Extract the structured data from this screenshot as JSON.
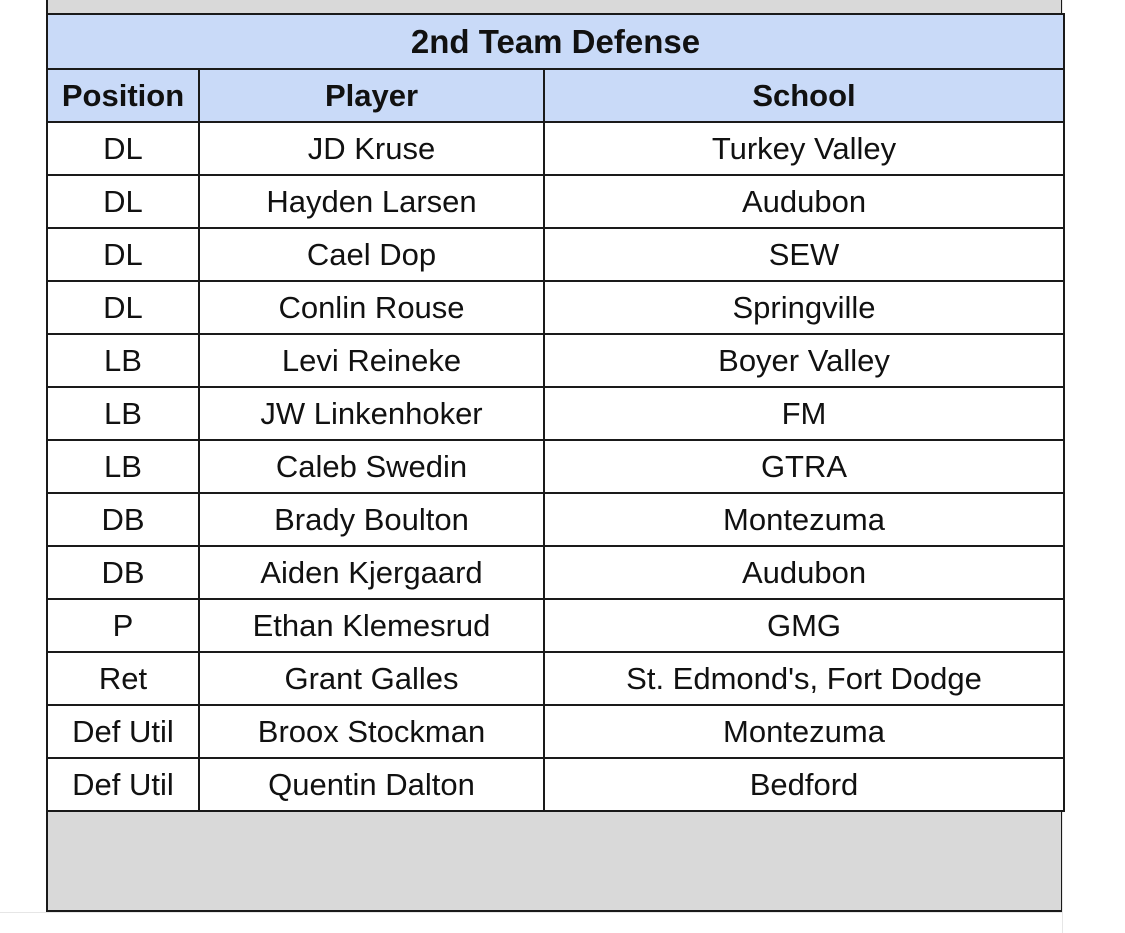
{
  "table": {
    "title": "2nd Team Defense",
    "headers": {
      "position": "Position",
      "player": "Player",
      "school": "School"
    },
    "rows": [
      {
        "position": "DL",
        "player": "JD Kruse",
        "school": "Turkey Valley"
      },
      {
        "position": "DL",
        "player": "Hayden Larsen",
        "school": "Audubon"
      },
      {
        "position": "DL",
        "player": "Cael Dop",
        "school": "SEW"
      },
      {
        "position": "DL",
        "player": "Conlin Rouse",
        "school": "Springville"
      },
      {
        "position": "LB",
        "player": "Levi Reineke",
        "school": "Boyer Valley"
      },
      {
        "position": "LB",
        "player": "JW Linkenhoker",
        "school": "FM"
      },
      {
        "position": "LB",
        "player": "Caleb Swedin",
        "school": "GTRA"
      },
      {
        "position": "DB",
        "player": "Brady Boulton",
        "school": "Montezuma"
      },
      {
        "position": "DB",
        "player": "Aiden Kjergaard",
        "school": "Audubon"
      },
      {
        "position": "P",
        "player": "Ethan Klemesrud",
        "school": "GMG"
      },
      {
        "position": "Ret",
        "player": "Grant Galles",
        "school": "St. Edmond's, Fort Dodge"
      },
      {
        "position": "Def Util",
        "player": "Broox Stockman",
        "school": "Montezuma"
      },
      {
        "position": "Def Util",
        "player": "Quentin Dalton",
        "school": "Bedford"
      }
    ]
  },
  "colors": {
    "header_fill": "#c9daf8",
    "empty_area_fill": "#d9d9d9",
    "border": "#1a1a1a"
  }
}
